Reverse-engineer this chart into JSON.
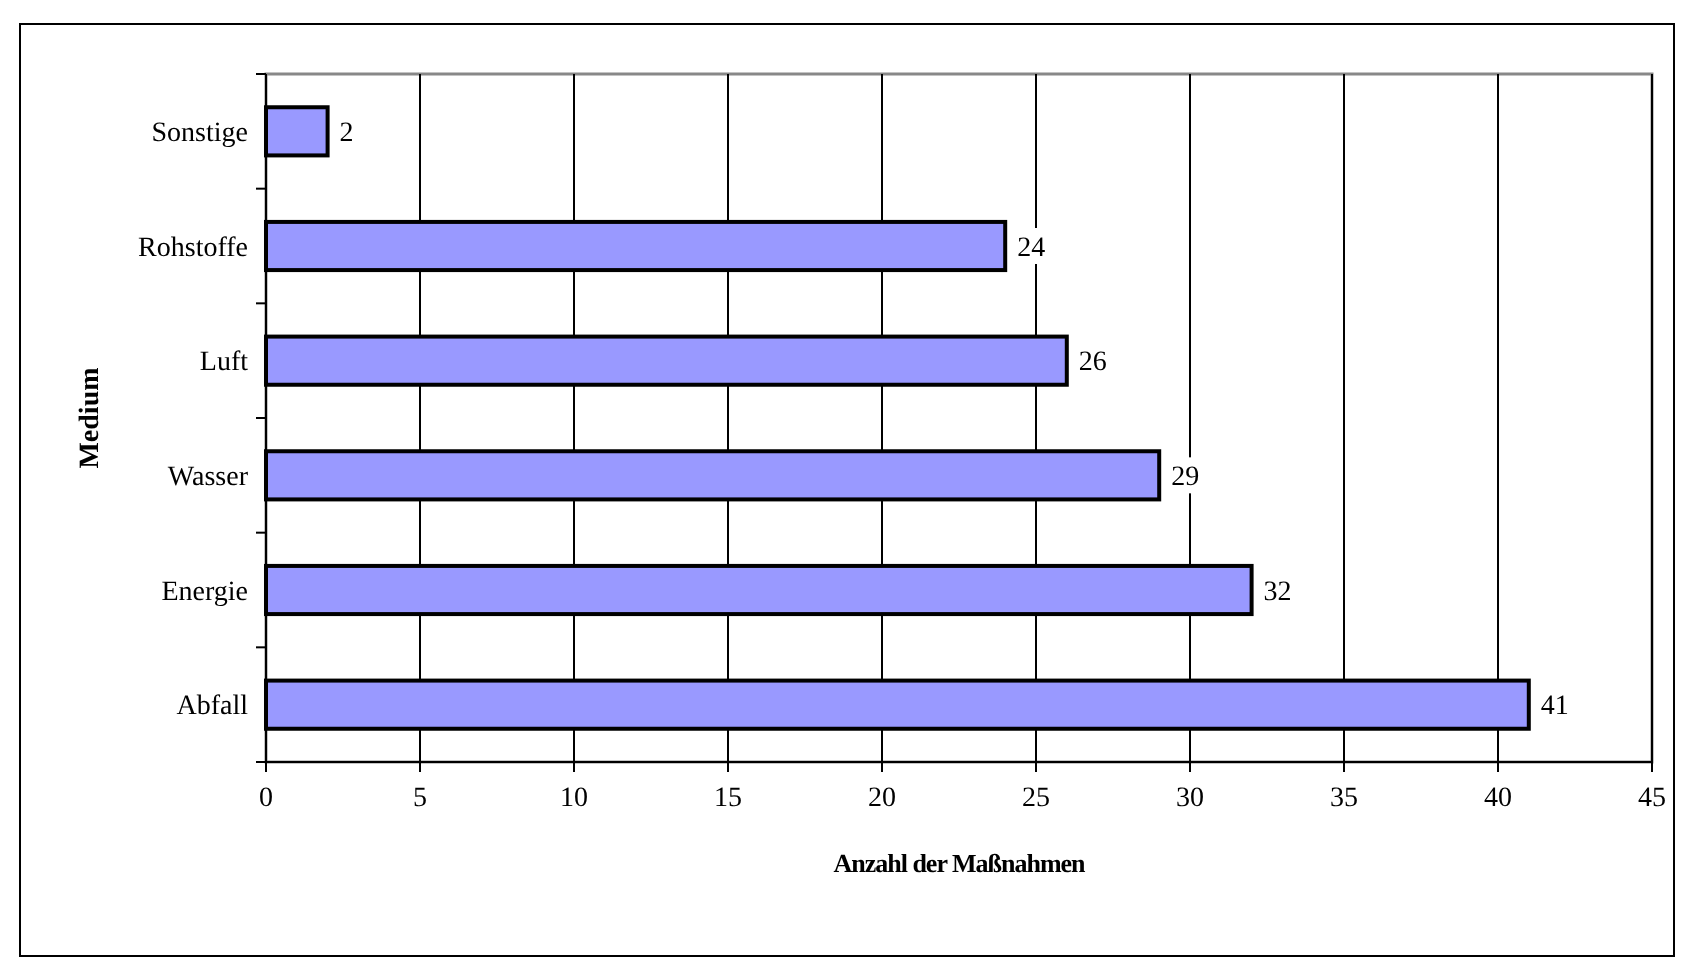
{
  "chart_data": {
    "type": "bar",
    "orientation": "horizontal",
    "xlabel": "Anzahl der Maßnahmen",
    "ylabel": "Medium",
    "categories": [
      "Sonstige",
      "Rohstoffe",
      "Luft",
      "Wasser",
      "Energie",
      "Abfall"
    ],
    "values": [
      2,
      24,
      26,
      29,
      32,
      41
    ],
    "color": "#9999ff",
    "xlim": [
      0,
      45
    ],
    "xticks": [
      0,
      5,
      10,
      15,
      20,
      25,
      30,
      35,
      40,
      45
    ],
    "grid": "x",
    "data_labels": true
  }
}
